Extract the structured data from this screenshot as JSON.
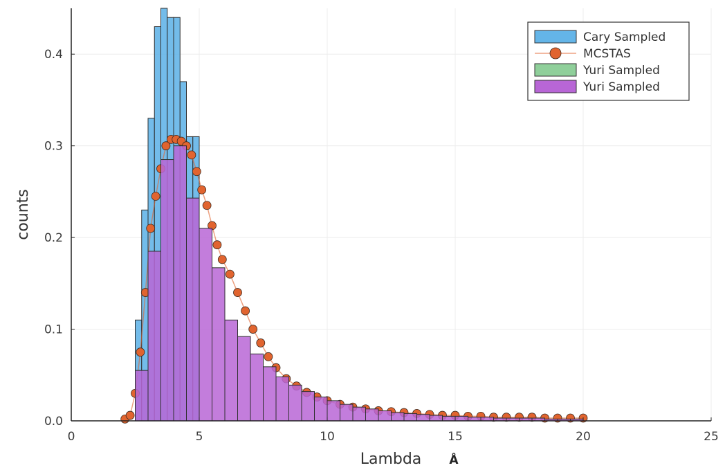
{
  "chart_data": {
    "type": "bar",
    "xlabel": "Lambda",
    "xlabel_unit": "Å",
    "ylabel": "counts",
    "xlim": [
      0,
      25
    ],
    "ylim": [
      0,
      0.45
    ],
    "x_ticks": [
      "0",
      "5",
      "10",
      "15",
      "20",
      "25"
    ],
    "y_ticks": [
      "0.0",
      "0.1",
      "0.2",
      "0.3",
      "0.4"
    ],
    "x_tick_values": [
      0,
      5,
      10,
      15,
      20,
      25
    ],
    "y_tick_values": [
      0.0,
      0.1,
      0.2,
      0.3,
      0.4
    ],
    "grid": true,
    "legend_position": "top-right",
    "series": [
      {
        "name": "Cary Sampled",
        "kind": "histogram",
        "color": "#64b5e8",
        "bin_edges": [
          2.5,
          2.75,
          3.0,
          3.25,
          3.5,
          3.75,
          4.0,
          4.25,
          4.5,
          4.75,
          5.0
        ],
        "values": [
          0.11,
          0.23,
          0.33,
          0.43,
          0.45,
          0.44,
          0.44,
          0.37,
          0.31,
          0.31
        ]
      },
      {
        "name": "MCSTAS",
        "kind": "line-markers",
        "color": "#e1642f",
        "x": [
          2.1,
          2.3,
          2.5,
          2.7,
          2.9,
          3.1,
          3.3,
          3.5,
          3.7,
          3.9,
          4.1,
          4.3,
          4.5,
          4.7,
          4.9,
          5.1,
          5.3,
          5.5,
          5.7,
          5.9,
          6.2,
          6.5,
          6.8,
          7.1,
          7.4,
          7.7,
          8.0,
          8.4,
          8.8,
          9.2,
          9.6,
          10.0,
          10.5,
          11.0,
          11.5,
          12.0,
          12.5,
          13.0,
          13.5,
          14.0,
          14.5,
          15.0,
          15.5,
          16.0,
          16.5,
          17.0,
          17.5,
          18.0,
          18.5,
          19.0,
          19.5,
          20.0
        ],
        "y": [
          0.002,
          0.006,
          0.03,
          0.075,
          0.14,
          0.21,
          0.245,
          0.275,
          0.3,
          0.307,
          0.307,
          0.305,
          0.3,
          0.29,
          0.272,
          0.252,
          0.235,
          0.213,
          0.192,
          0.176,
          0.16,
          0.14,
          0.12,
          0.1,
          0.085,
          0.07,
          0.058,
          0.046,
          0.038,
          0.031,
          0.026,
          0.022,
          0.018,
          0.015,
          0.013,
          0.011,
          0.01,
          0.009,
          0.008,
          0.007,
          0.006,
          0.006,
          0.005,
          0.005,
          0.004,
          0.004,
          0.004,
          0.004,
          0.003,
          0.003,
          0.003,
          0.003
        ]
      },
      {
        "name": "Yuri Sampled",
        "kind": "histogram",
        "color": "#8fcf9a",
        "bin_edges": [],
        "values": []
      },
      {
        "name": "Yuri Sampled",
        "kind": "histogram",
        "color": "#b866d6",
        "bin_edges": [
          2.5,
          3.0,
          3.5,
          4.0,
          4.5,
          5.0,
          5.5,
          6.0,
          6.5,
          7.0,
          7.5,
          8.0,
          8.5,
          9.0,
          9.5,
          10.0,
          10.5,
          11.0,
          11.5,
          12.0,
          12.5,
          13.0,
          13.5,
          14.0,
          14.5,
          15.0,
          15.5,
          16.0,
          16.5,
          17.0,
          17.5,
          18.0,
          18.5,
          19.0,
          19.5,
          20.0
        ],
        "values": [
          0.055,
          0.185,
          0.285,
          0.3,
          0.243,
          0.21,
          0.167,
          0.11,
          0.092,
          0.073,
          0.059,
          0.048,
          0.039,
          0.032,
          0.026,
          0.022,
          0.018,
          0.015,
          0.013,
          0.011,
          0.009,
          0.008,
          0.007,
          0.006,
          0.005,
          0.005,
          0.004,
          0.004,
          0.003,
          0.003,
          0.003,
          0.003,
          0.002,
          0.002,
          0.002
        ]
      }
    ]
  }
}
